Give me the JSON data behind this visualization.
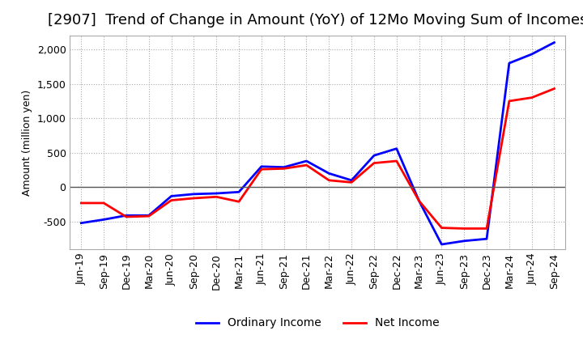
{
  "title": "[2907]  Trend of Change in Amount (YoY) of 12Mo Moving Sum of Incomes",
  "ylabel": "Amount (million yen)",
  "x_labels": [
    "Jun-19",
    "Sep-19",
    "Dec-19",
    "Mar-20",
    "Jun-20",
    "Sep-20",
    "Dec-20",
    "Mar-21",
    "Jun-21",
    "Sep-21",
    "Dec-21",
    "Mar-22",
    "Jun-22",
    "Sep-22",
    "Dec-22",
    "Mar-23",
    "Jun-23",
    "Sep-23",
    "Dec-23",
    "Mar-24",
    "Jun-24",
    "Sep-24"
  ],
  "ordinary_income": [
    -520,
    -470,
    -410,
    -410,
    -130,
    -100,
    -90,
    -70,
    300,
    290,
    380,
    200,
    100,
    460,
    560,
    -200,
    -830,
    -780,
    -750,
    1800,
    1930,
    2100
  ],
  "net_income": [
    -230,
    -230,
    -430,
    -420,
    -190,
    -160,
    -140,
    -210,
    260,
    270,
    320,
    100,
    70,
    350,
    380,
    -200,
    -590,
    -600,
    -600,
    1250,
    1300,
    1430
  ],
  "ordinary_color": "#0000ff",
  "net_color": "#ff0000",
  "ylim": [
    -900,
    2200
  ],
  "yticks": [
    -500,
    0,
    500,
    1000,
    1500,
    2000
  ],
  "grid_color": "#aaaaaa",
  "background_color": "#ffffff",
  "title_fontsize": 13,
  "axis_fontsize": 9,
  "legend_fontsize": 10
}
